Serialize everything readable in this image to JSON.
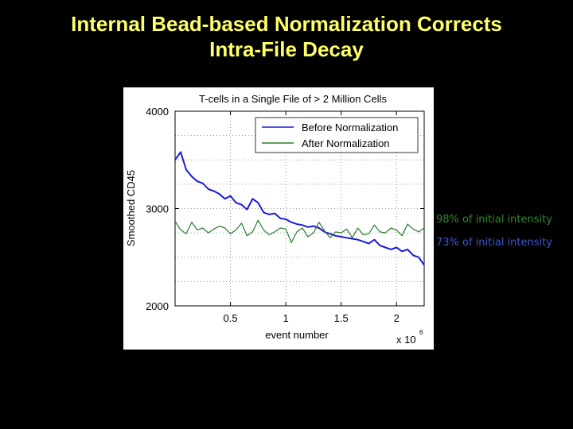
{
  "slide": {
    "title_line1": "Internal Bead-based Normalization Corrects",
    "title_line2": "Intra-File Decay",
    "annotation_after": "98% of initial intensity",
    "annotation_before": "73% of initial intensity",
    "annotation_after_color": "#2e8b2e",
    "annotation_before_color": "#3c5ad0"
  },
  "chart_data": {
    "type": "line",
    "title": "T-cells in a Single File of > 2 Million Cells",
    "xlabel": "event number",
    "ylabel": "Smoothed CD45",
    "x_multiplier_label": "x 10",
    "x_multiplier_exponent": "6",
    "xlim": [
      0,
      2.25
    ],
    "ylim": [
      2000,
      4000
    ],
    "x_ticks": [
      0.5,
      1,
      1.5,
      2
    ],
    "x_tick_labels": [
      "0.5",
      "1",
      "1.5",
      "2"
    ],
    "y_ticks": [
      2000,
      3000,
      4000
    ],
    "y_tick_labels": [
      "2000",
      "3000",
      "4000"
    ],
    "grid": true,
    "legend_position": "top-right",
    "series": [
      {
        "name": "Before Normalization",
        "color": "#1a1adc",
        "x": [
          0.0,
          0.05,
          0.1,
          0.15,
          0.2,
          0.25,
          0.3,
          0.35,
          0.4,
          0.45,
          0.5,
          0.55,
          0.6,
          0.65,
          0.7,
          0.75,
          0.8,
          0.85,
          0.9,
          0.95,
          1.0,
          1.05,
          1.1,
          1.15,
          1.2,
          1.25,
          1.3,
          1.35,
          1.4,
          1.45,
          1.5,
          1.55,
          1.6,
          1.65,
          1.7,
          1.75,
          1.8,
          1.85,
          1.9,
          1.95,
          2.0,
          2.05,
          2.1,
          2.15,
          2.2,
          2.25
        ],
        "values": [
          3500,
          3580,
          3400,
          3330,
          3280,
          3260,
          3200,
          3180,
          3150,
          3100,
          3130,
          3060,
          3040,
          2990,
          3100,
          3060,
          2960,
          2940,
          2950,
          2900,
          2890,
          2860,
          2840,
          2830,
          2810,
          2820,
          2800,
          2760,
          2740,
          2720,
          2710,
          2700,
          2690,
          2680,
          2660,
          2640,
          2680,
          2620,
          2600,
          2580,
          2600,
          2560,
          2580,
          2520,
          2500,
          2420
        ]
      },
      {
        "name": "After Normalization",
        "color": "#2a7a2a",
        "x": [
          0.0,
          0.05,
          0.1,
          0.15,
          0.2,
          0.25,
          0.3,
          0.35,
          0.4,
          0.45,
          0.5,
          0.55,
          0.6,
          0.65,
          0.7,
          0.75,
          0.8,
          0.85,
          0.9,
          0.95,
          1.0,
          1.05,
          1.1,
          1.15,
          1.2,
          1.25,
          1.3,
          1.35,
          1.4,
          1.45,
          1.5,
          1.55,
          1.6,
          1.65,
          1.7,
          1.75,
          1.8,
          1.85,
          1.9,
          1.95,
          2.0,
          2.05,
          2.1,
          2.15,
          2.2,
          2.25
        ],
        "values": [
          2870,
          2780,
          2740,
          2860,
          2780,
          2800,
          2750,
          2790,
          2820,
          2800,
          2740,
          2780,
          2850,
          2720,
          2760,
          2880,
          2780,
          2730,
          2760,
          2800,
          2790,
          2650,
          2760,
          2800,
          2710,
          2750,
          2860,
          2770,
          2700,
          2760,
          2750,
          2790,
          2700,
          2800,
          2730,
          2740,
          2830,
          2760,
          2750,
          2800,
          2780,
          2720,
          2840,
          2790,
          2760,
          2800
        ]
      }
    ]
  }
}
